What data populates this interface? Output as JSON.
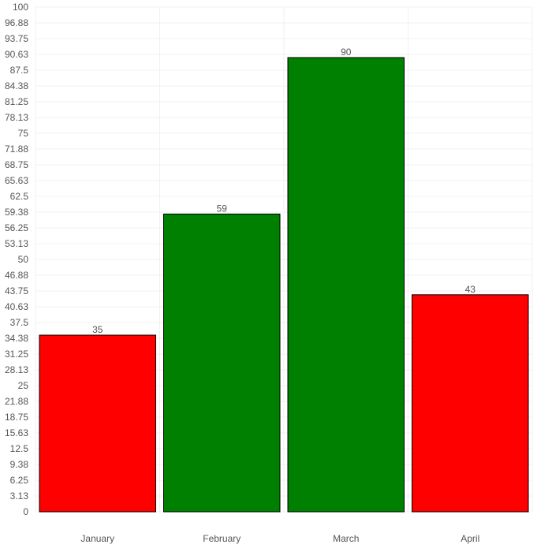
{
  "chart_data": {
    "type": "bar",
    "categories": [
      "January",
      "February",
      "March",
      "April"
    ],
    "values": [
      35,
      59,
      90,
      43
    ],
    "bar_colors": [
      "#ff0000",
      "#008000",
      "#008000",
      "#ff0000"
    ],
    "bar_border_color": "#000000",
    "title": "",
    "xlabel": "",
    "ylabel": "",
    "ylim": [
      0,
      100
    ],
    "y_ticks": [
      "100",
      "96.88",
      "93.75",
      "90.63",
      "87.5",
      "84.38",
      "81.25",
      "78.13",
      "75",
      "71.88",
      "68.75",
      "65.63",
      "62.5",
      "59.38",
      "56.25",
      "53.13",
      "50",
      "46.88",
      "43.75",
      "40.63",
      "37.5",
      "34.38",
      "31.25",
      "28.13",
      "25",
      "21.88",
      "18.75",
      "15.63",
      "12.5",
      "9.38",
      "6.25",
      "3.13",
      "0"
    ],
    "grid": true,
    "legend": "none",
    "data_labels": [
      "35",
      "59",
      "90",
      "43"
    ]
  }
}
